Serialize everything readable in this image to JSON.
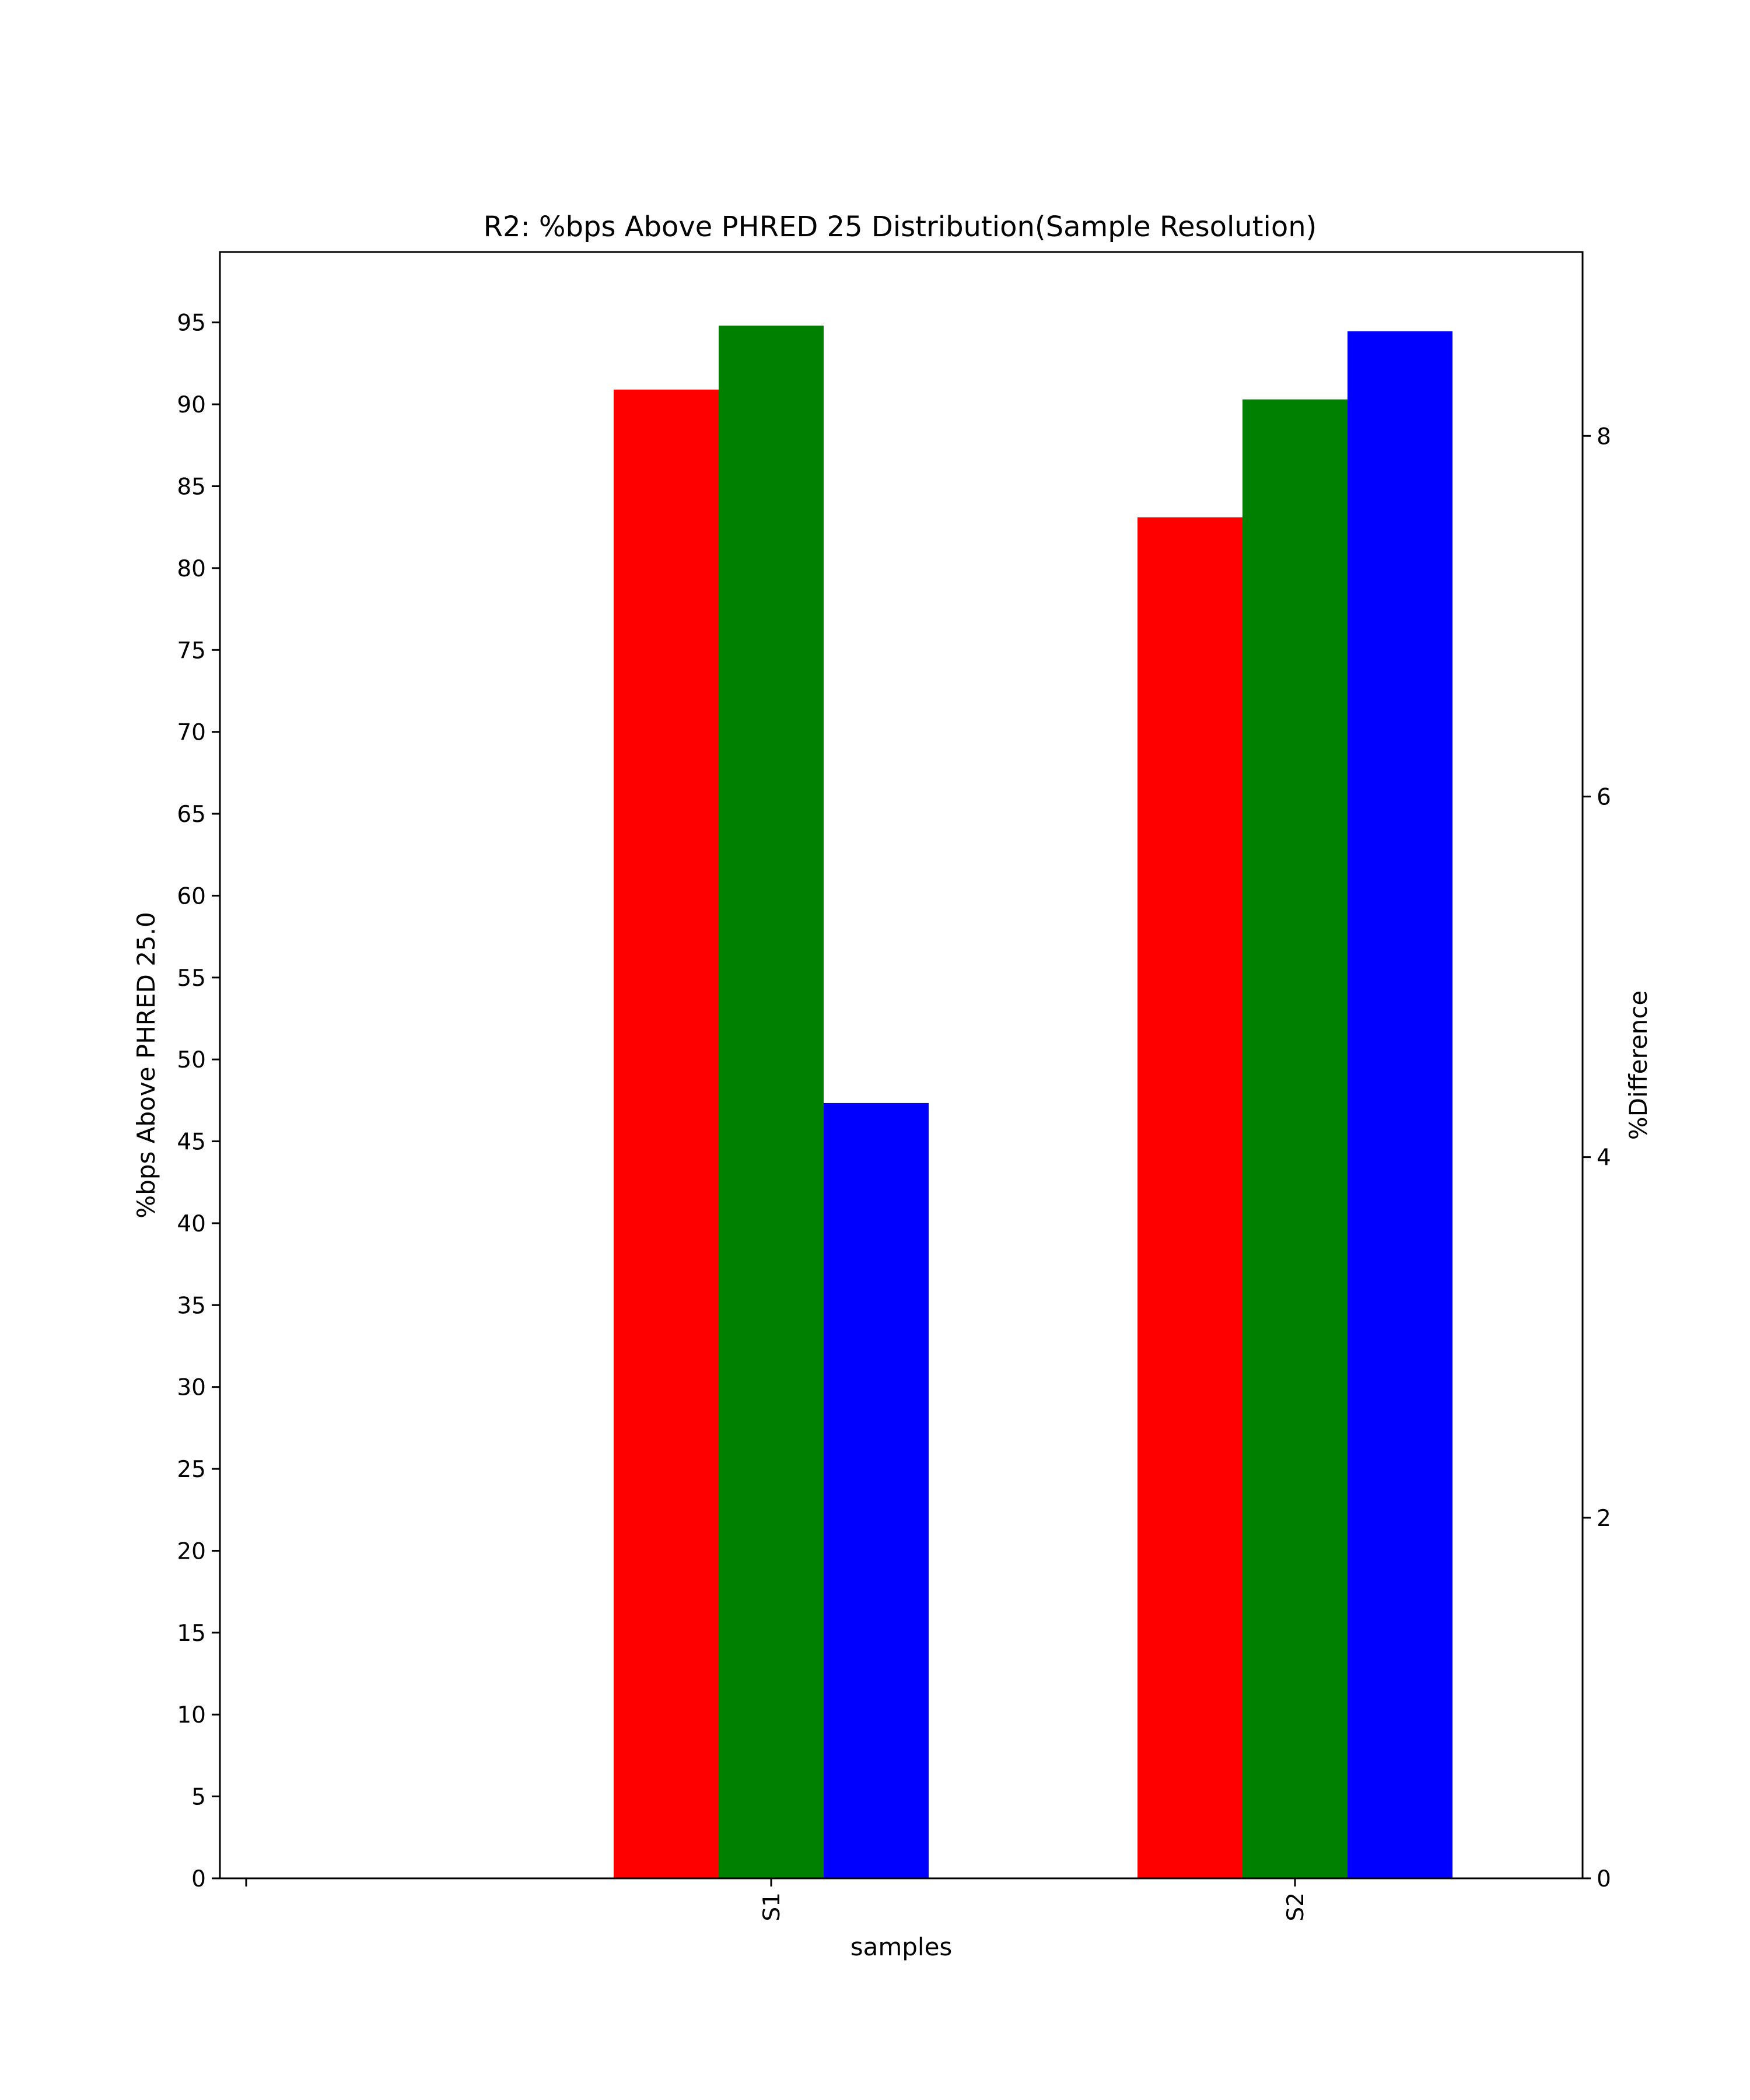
{
  "chart_data": {
    "type": "bar",
    "title": "R2: %bps Above PHRED 25 Distribution(Sample Resolution)",
    "xlabel": "samples",
    "ylabel": "%bps Above PHRED 25.0",
    "y2label": "%Difference",
    "categories": [
      "",
      "S1",
      "S2"
    ],
    "ylim": [
      0,
      99.3
    ],
    "y2lim": [
      0,
      9.02
    ],
    "yticks": [
      0,
      5,
      10,
      15,
      20,
      25,
      30,
      35,
      40,
      45,
      50,
      55,
      60,
      65,
      70,
      75,
      80,
      85,
      90,
      95
    ],
    "y2ticks": [
      0,
      2,
      4,
      6,
      8
    ],
    "grid": false,
    "series": [
      {
        "color": "#ff0000",
        "axis": "left",
        "values": [
          null,
          90.9,
          83.1
        ]
      },
      {
        "color": "#008000",
        "axis": "left",
        "values": [
          null,
          94.8,
          90.3
        ]
      },
      {
        "color": "#0000ff",
        "axis": "right",
        "values": [
          null,
          4.3,
          8.58
        ]
      }
    ]
  }
}
